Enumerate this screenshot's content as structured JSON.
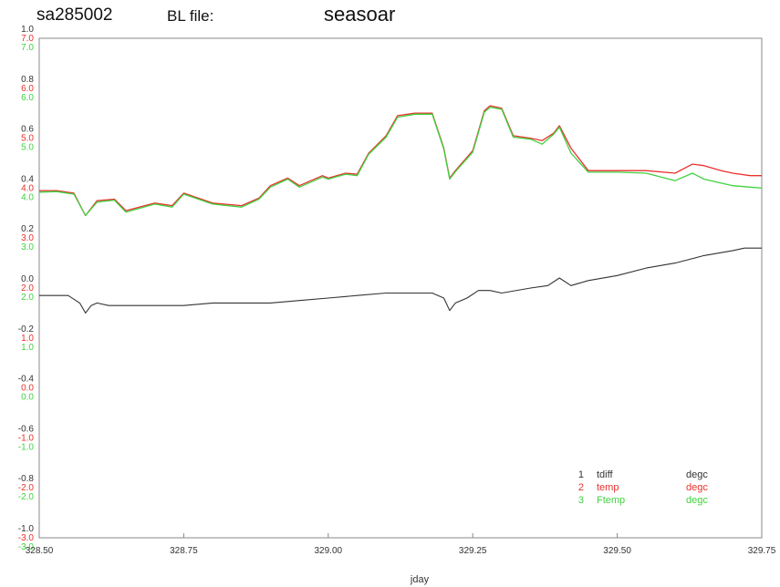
{
  "header": {
    "run_id": "sa285002",
    "file_label": "BL file:",
    "instrument": "seasoar"
  },
  "colors": {
    "tdiff": "#333333",
    "temp": "#e8322e",
    "ftemp": "#3fd23f",
    "axis": "#888888"
  },
  "chart_data": {
    "type": "line",
    "title": "",
    "xlabel": "jday",
    "ylabel": "",
    "xlim": [
      328.5,
      329.75
    ],
    "x_ticks": [
      {
        "value": 328.5,
        "label": "328.50"
      },
      {
        "value": 328.75,
        "label": "328.75"
      },
      {
        "value": 329.0,
        "label": "329.00"
      },
      {
        "value": 329.25,
        "label": "329.25"
      },
      {
        "value": 329.5,
        "label": "329.50"
      },
      {
        "value": 329.75,
        "label": "329.75"
      }
    ],
    "y_axes": [
      {
        "series": "tdiff",
        "ylim": [
          -1.0,
          1.0
        ],
        "ticks": [
          "-1.0",
          "-0.8",
          "-0.6",
          "-0.4",
          "-0.2",
          "0.0",
          "0.2",
          "0.4",
          "0.6",
          "0.8",
          "1.0"
        ]
      },
      {
        "series": "temp",
        "ylim": [
          -3.0,
          7.0
        ],
        "ticks": [
          "-3.0",
          "-2.0",
          "-1.0",
          "0.0",
          "1.0",
          "2.0",
          "3.0",
          "4.0",
          "5.0",
          "6.0",
          "7.0"
        ]
      },
      {
        "series": "ftemp",
        "ylim": [
          -3.0,
          7.0
        ],
        "ticks": [
          "-3.0",
          "-2.0",
          "-1.0",
          "0.0",
          "1.0",
          "2.0",
          "3.0",
          "4.0",
          "5.0",
          "6.0",
          "7.0"
        ]
      }
    ],
    "grid": false,
    "legend_position": "bottom-right",
    "series": [
      {
        "id": "tdiff",
        "number": "1",
        "name": "tdiff",
        "units": "degc",
        "x": [
          328.5,
          328.55,
          328.57,
          328.58,
          328.59,
          328.6,
          328.62,
          328.65,
          328.7,
          328.75,
          328.8,
          328.85,
          328.9,
          328.95,
          329.0,
          329.05,
          329.1,
          329.15,
          329.18,
          329.2,
          329.21,
          329.22,
          329.24,
          329.26,
          329.28,
          329.3,
          329.35,
          329.38,
          329.4,
          329.42,
          329.45,
          329.5,
          329.55,
          329.6,
          329.65,
          329.7,
          329.72,
          329.75
        ],
        "y": [
          -0.03,
          -0.03,
          -0.06,
          -0.1,
          -0.07,
          -0.06,
          -0.07,
          -0.07,
          -0.07,
          -0.07,
          -0.06,
          -0.06,
          -0.06,
          -0.05,
          -0.04,
          -0.03,
          -0.02,
          -0.02,
          -0.02,
          -0.04,
          -0.09,
          -0.06,
          -0.04,
          -0.01,
          -0.01,
          -0.02,
          0.0,
          0.01,
          0.04,
          0.01,
          0.03,
          0.05,
          0.08,
          0.1,
          0.13,
          0.15,
          0.16,
          0.16
        ]
      },
      {
        "id": "temp",
        "number": "2",
        "name": "temp",
        "units": "degc",
        "x": [
          328.5,
          328.53,
          328.56,
          328.58,
          328.6,
          328.63,
          328.65,
          328.7,
          328.73,
          328.75,
          328.8,
          328.85,
          328.88,
          328.9,
          328.93,
          328.95,
          328.99,
          329.0,
          329.03,
          329.05,
          329.07,
          329.1,
          329.12,
          329.15,
          329.18,
          329.2,
          329.21,
          329.22,
          329.25,
          329.27,
          329.28,
          329.3,
          329.32,
          329.35,
          329.37,
          329.39,
          329.4,
          329.42,
          329.45,
          329.5,
          329.55,
          329.6,
          329.63,
          329.65,
          329.68,
          329.7,
          329.73,
          329.75
        ],
        "y": [
          3.95,
          3.95,
          3.9,
          3.45,
          3.75,
          3.78,
          3.55,
          3.7,
          3.65,
          3.9,
          3.7,
          3.65,
          3.8,
          4.05,
          4.2,
          4.05,
          4.25,
          4.2,
          4.3,
          4.28,
          4.7,
          5.05,
          5.45,
          5.5,
          5.5,
          4.8,
          4.2,
          4.35,
          4.75,
          5.55,
          5.65,
          5.6,
          5.05,
          5.0,
          4.95,
          5.1,
          5.25,
          4.8,
          4.35,
          4.35,
          4.35,
          4.3,
          4.48,
          4.45,
          4.35,
          4.3,
          4.25,
          4.25
        ]
      },
      {
        "id": "ftemp",
        "number": "3",
        "name": "Ftemp",
        "units": "degc",
        "x": [
          328.5,
          328.53,
          328.56,
          328.58,
          328.6,
          328.63,
          328.65,
          328.7,
          328.73,
          328.75,
          328.8,
          328.85,
          328.88,
          328.9,
          328.93,
          328.95,
          328.99,
          329.0,
          329.03,
          329.05,
          329.07,
          329.1,
          329.12,
          329.15,
          329.18,
          329.2,
          329.21,
          329.22,
          329.25,
          329.27,
          329.28,
          329.3,
          329.32,
          329.35,
          329.37,
          329.39,
          329.4,
          329.42,
          329.45,
          329.5,
          329.55,
          329.6,
          329.63,
          329.65,
          329.68,
          329.7,
          329.73,
          329.75
        ],
        "y": [
          3.92,
          3.93,
          3.88,
          3.45,
          3.72,
          3.76,
          3.52,
          3.68,
          3.62,
          3.88,
          3.68,
          3.62,
          3.78,
          4.02,
          4.18,
          4.02,
          4.22,
          4.18,
          4.28,
          4.25,
          4.68,
          5.02,
          5.42,
          5.48,
          5.48,
          4.78,
          4.18,
          4.33,
          4.72,
          5.52,
          5.62,
          5.58,
          5.02,
          4.98,
          4.88,
          5.08,
          5.22,
          4.7,
          4.32,
          4.32,
          4.3,
          4.15,
          4.3,
          4.18,
          4.1,
          4.05,
          4.02,
          4.0
        ]
      }
    ]
  }
}
